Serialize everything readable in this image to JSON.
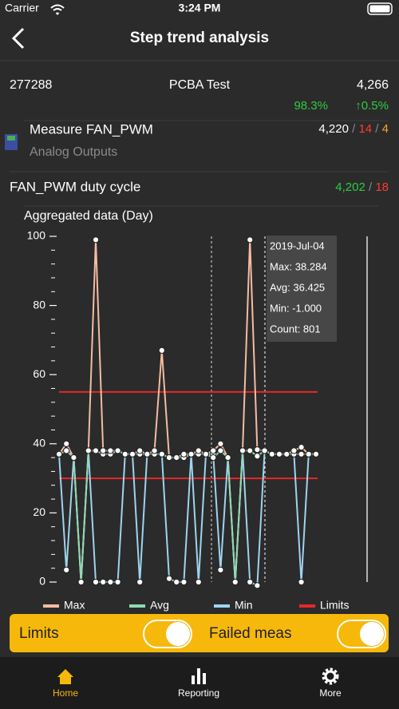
{
  "status_bar": {
    "carrier": "Carrier",
    "time": "3:24 PM"
  },
  "header": {
    "title": "Step trend analysis"
  },
  "summary": {
    "id": "277288",
    "name": "PCBA Test",
    "count": "4,266",
    "yield": "98.3%",
    "change": "↑0.5%"
  },
  "measure": {
    "name": "Measure FAN_PWM",
    "group": "Analog Outputs",
    "total": "4,220",
    "failed": "14",
    "other": "4",
    "separator": " / "
  },
  "step": {
    "name": "FAN_PWM duty cycle",
    "passed": "4,202",
    "failed": "18",
    "separator": " / "
  },
  "chart_data": {
    "type": "line",
    "title": "Aggregated data (Day)",
    "categories": [
      null,
      null,
      null,
      null,
      null,
      null,
      null,
      null,
      null,
      null,
      null,
      null,
      null,
      null,
      null,
      null,
      null,
      null,
      null,
      null,
      null,
      null,
      null,
      null,
      null,
      null,
      null,
      null,
      null,
      null,
      null,
      null,
      null,
      null,
      null,
      null
    ],
    "series": [
      {
        "name": "Max",
        "color": "#f5bca3",
        "values": [
          37,
          40,
          36,
          0,
          38,
          99,
          38,
          38,
          38,
          37,
          37,
          38,
          37,
          38,
          67,
          36,
          36,
          37,
          37,
          38,
          37,
          38,
          40,
          36,
          0,
          38,
          99,
          38.284,
          38,
          37,
          37,
          37,
          38,
          39,
          37,
          37
        ]
      },
      {
        "name": "Avg",
        "color": "#8fd9b3",
        "values": [
          37,
          38,
          36,
          0,
          38,
          38,
          37,
          37,
          38,
          37,
          37,
          37,
          37,
          37,
          37,
          36,
          36,
          36,
          37,
          37,
          37,
          36,
          38,
          36,
          0,
          38,
          38,
          36.425,
          38,
          37,
          37,
          37,
          37,
          37,
          37,
          37
        ]
      },
      {
        "name": "Min",
        "color": "#9fd4ef",
        "values": [
          37,
          3.5,
          36,
          0,
          38,
          0,
          0,
          0,
          0,
          37,
          37,
          0,
          37,
          37,
          37,
          1,
          0,
          0,
          37,
          0,
          37,
          37,
          3.5,
          36,
          0,
          38,
          0,
          -1,
          38,
          37,
          37,
          37,
          37,
          0,
          37,
          37
        ]
      }
    ],
    "limits": {
      "name": "Limits",
      "color": "#e5282b",
      "values": [
        55,
        30
      ]
    },
    "ylim": [
      0,
      100
    ],
    "yticks": [
      0,
      20,
      40,
      60,
      80,
      100
    ],
    "tooltip": {
      "date": "2019-Jul-04",
      "max": "Max: 38.284",
      "avg": "Avg: 36.425",
      "min": "Min: -1.000",
      "count": "Count: 801"
    }
  },
  "toggles": [
    {
      "label": "Limits"
    },
    {
      "label": "Failed meas"
    }
  ],
  "tabs": [
    {
      "label": "Home"
    },
    {
      "label": "Reporting"
    },
    {
      "label": "More"
    }
  ]
}
